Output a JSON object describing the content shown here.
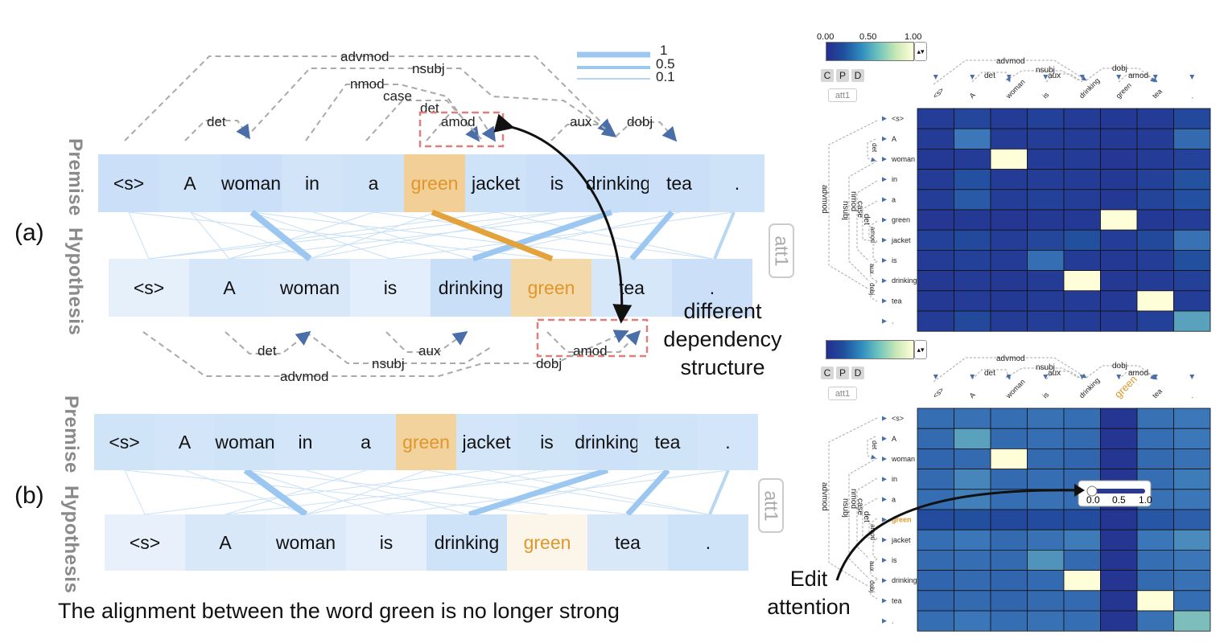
{
  "panel_a": {
    "label": "(a)",
    "premise_label": "Premise",
    "hypothesis_label": "Hypothesis",
    "att_button": "att1",
    "premise_tokens": [
      "<s>",
      "A",
      "woman",
      "in",
      "a",
      "green",
      "jacket",
      "is",
      "drinking",
      "tea",
      "."
    ],
    "hypothesis_tokens": [
      "<s>",
      "A",
      "woman",
      "is",
      "drinking",
      "green",
      "tea",
      "."
    ],
    "premise_deps": [
      "advmod",
      "nsubj",
      "nmod",
      "case",
      "det",
      "det",
      "amod",
      "aux",
      "dobj"
    ],
    "hypothesis_deps": [
      "det",
      "aux",
      "amod",
      "nsubj",
      "dobj",
      "advmod"
    ],
    "line_legend": [
      "1",
      "0.5",
      "0.1"
    ],
    "annotation": [
      "different",
      "dependency",
      "structure"
    ]
  },
  "panel_b": {
    "label": "(b)",
    "premise_label": "Premise",
    "hypothesis_label": "Hypothesis",
    "att_button": "att1",
    "premise_tokens": [
      "<s>",
      "A",
      "woman",
      "in",
      "a",
      "green",
      "jacket",
      "is",
      "drinking",
      "tea",
      "."
    ],
    "hypothesis_tokens": [
      "<s>",
      "A",
      "woman",
      "is",
      "drinking",
      "green",
      "tea",
      "."
    ],
    "caption": "The alignment between the word green is no longer strong"
  },
  "matrix_top": {
    "colorbar_ticks": [
      "0.00",
      "0.50",
      "1.00"
    ],
    "buttons": [
      "C",
      "P",
      "D"
    ],
    "att_label": "att1",
    "col_tokens": [
      "<s>",
      "A",
      "woman",
      "is",
      "drinking",
      "green",
      "tea",
      "."
    ],
    "row_tokens": [
      "<s>",
      "A",
      "woman",
      "in",
      "a",
      "green",
      "jacket",
      "is",
      "drinking",
      "tea",
      "."
    ],
    "col_deps": [
      "advmod",
      "nsubj",
      "det",
      "aux",
      "dobj",
      "amod"
    ],
    "row_deps": [
      "det",
      "advmod",
      "nsubj",
      "nmod",
      "case",
      "det",
      "amod",
      "aux",
      "dobj"
    ]
  },
  "matrix_bottom": {
    "colorbar_ticks": [
      "0.00",
      "0.50",
      "1.00"
    ],
    "buttons": [
      "C",
      "P",
      "D"
    ],
    "att_label": "att1",
    "col_tokens": [
      "<s>",
      "A",
      "woman",
      "is",
      "drinking",
      "green",
      "tea",
      "."
    ],
    "row_tokens": [
      "<s>",
      "A",
      "woman",
      "in",
      "a",
      "green",
      "jacket",
      "is",
      "drinking",
      "tea",
      "."
    ],
    "col_deps": [
      "advmod",
      "nsubj",
      "det",
      "aux",
      "dobj",
      "amod"
    ],
    "row_deps": [
      "det",
      "advmod",
      "nsubj",
      "nmod",
      "case",
      "det",
      "amod",
      "aux",
      "dobj"
    ],
    "slider_ticks": [
      "0.0",
      "0.5",
      "1.0"
    ],
    "edit_annotation": [
      "Edit",
      "attention"
    ]
  },
  "colors": {
    "token_bg": "#cfe2f8",
    "highlight": "#f2cf96",
    "highlight_text": "#e0962a",
    "dep_line": "#a9a9a9",
    "dep_arrow": "#4a6fa8",
    "align_line": "#9cc7f0",
    "align_highlight": "#e3a23a",
    "dashed_box": "#e07d7d"
  }
}
